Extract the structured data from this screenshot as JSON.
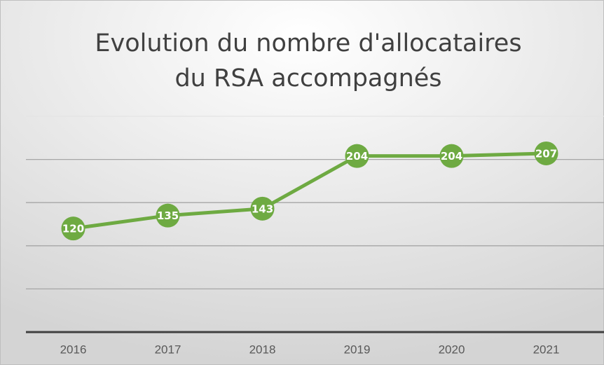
{
  "chart_data": {
    "type": "line",
    "title_lines": [
      "Evolution du nombre d'allocataires",
      "du RSA accompagnés"
    ],
    "categories": [
      "2016",
      "2017",
      "2018",
      "2019",
      "2020",
      "2021"
    ],
    "values": [
      120,
      135,
      143,
      204,
      204,
      207
    ],
    "color": "#6eaa42",
    "ylim": [
      0,
      250
    ],
    "yticks": [
      0,
      50,
      100,
      150,
      200,
      250
    ],
    "grid": true
  }
}
